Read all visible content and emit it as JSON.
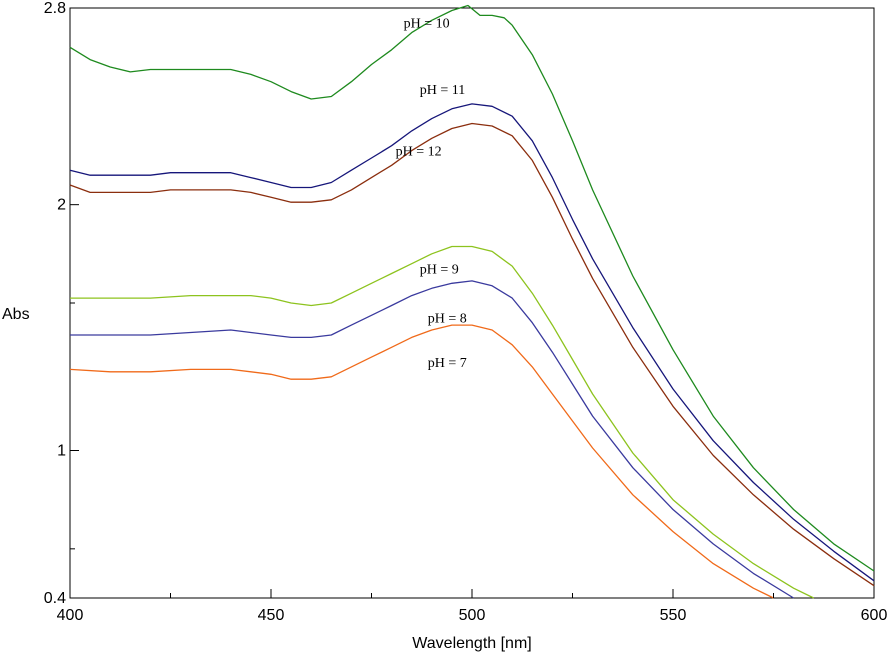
{
  "chart_data": {
    "type": "line",
    "xlabel": "Wavelength [nm]",
    "ylabel": "Abs",
    "xlim": [
      400,
      600
    ],
    "ylim": [
      0.4,
      2.8
    ],
    "xticks": [
      {
        "value": 400,
        "label": "400"
      },
      {
        "value": 450,
        "label": "450"
      },
      {
        "value": 500,
        "label": "500"
      },
      {
        "value": 550,
        "label": "550"
      },
      {
        "value": 600,
        "label": "600"
      }
    ],
    "xminor": [
      425,
      475,
      525,
      575
    ],
    "yticks": [
      {
        "value": 0.4,
        "label": "0.4"
      },
      {
        "value": 1,
        "label": "1"
      },
      {
        "value": 2,
        "label": "2"
      },
      {
        "value": 2.8,
        "label": "2.8"
      }
    ],
    "yminor": [
      0.6,
      1.6
    ],
    "grid": false,
    "legend": "none",
    "series": [
      {
        "name": "pH = 10",
        "color": "#1e8a1e",
        "label_at": [
          483,
          2.72
        ],
        "x": [
          400,
          405,
          410,
          415,
          420,
          425,
          430,
          435,
          440,
          445,
          450,
          455,
          460,
          465,
          470,
          475,
          480,
          485,
          490,
          495,
          499,
          502,
          505,
          508,
          510,
          515,
          520,
          525,
          530,
          540,
          550,
          560,
          570,
          580,
          590,
          600
        ],
        "y": [
          2.64,
          2.59,
          2.56,
          2.54,
          2.55,
          2.55,
          2.55,
          2.55,
          2.55,
          2.53,
          2.5,
          2.46,
          2.43,
          2.44,
          2.5,
          2.57,
          2.63,
          2.7,
          2.75,
          2.79,
          2.81,
          2.77,
          2.77,
          2.76,
          2.73,
          2.61,
          2.45,
          2.26,
          2.06,
          1.71,
          1.41,
          1.14,
          0.93,
          0.76,
          0.62,
          0.51
        ]
      },
      {
        "name": "pH = 11",
        "color": "#16167a",
        "label_at": [
          487,
          2.45
        ],
        "x": [
          400,
          405,
          410,
          415,
          420,
          425,
          430,
          435,
          440,
          445,
          450,
          455,
          460,
          465,
          470,
          475,
          480,
          485,
          490,
          495,
          500,
          505,
          510,
          515,
          520,
          525,
          530,
          540,
          550,
          560,
          570,
          580,
          590,
          600
        ],
        "y": [
          2.14,
          2.12,
          2.12,
          2.12,
          2.12,
          2.13,
          2.13,
          2.13,
          2.13,
          2.11,
          2.09,
          2.07,
          2.07,
          2.09,
          2.14,
          2.19,
          2.24,
          2.3,
          2.35,
          2.39,
          2.41,
          2.4,
          2.36,
          2.26,
          2.11,
          1.94,
          1.78,
          1.5,
          1.25,
          1.04,
          0.87,
          0.72,
          0.59,
          0.47
        ]
      },
      {
        "name": "pH = 12",
        "color": "#8b2e0e",
        "label_at": [
          481,
          2.2
        ],
        "x": [
          400,
          405,
          410,
          415,
          420,
          425,
          430,
          435,
          440,
          445,
          450,
          455,
          460,
          465,
          470,
          475,
          480,
          485,
          490,
          495,
          500,
          505,
          510,
          515,
          520,
          525,
          530,
          540,
          550,
          560,
          570,
          580,
          590,
          600
        ],
        "y": [
          2.08,
          2.05,
          2.05,
          2.05,
          2.05,
          2.06,
          2.06,
          2.06,
          2.06,
          2.05,
          2.03,
          2.01,
          2.01,
          2.02,
          2.06,
          2.11,
          2.16,
          2.22,
          2.27,
          2.31,
          2.33,
          2.32,
          2.28,
          2.18,
          2.03,
          1.86,
          1.7,
          1.42,
          1.18,
          0.98,
          0.82,
          0.68,
          0.56,
          0.45
        ]
      },
      {
        "name": "pH = 9",
        "color": "#8dc31e",
        "label_at": [
          487,
          1.72
        ],
        "x": [
          400,
          410,
          420,
          430,
          440,
          445,
          450,
          455,
          460,
          465,
          470,
          475,
          480,
          485,
          490,
          495,
          500,
          505,
          510,
          515,
          520,
          525,
          530,
          540,
          550,
          560,
          570,
          580,
          585
        ],
        "y": [
          1.62,
          1.62,
          1.62,
          1.63,
          1.63,
          1.63,
          1.62,
          1.6,
          1.59,
          1.6,
          1.64,
          1.68,
          1.72,
          1.76,
          1.8,
          1.83,
          1.83,
          1.81,
          1.75,
          1.64,
          1.51,
          1.37,
          1.23,
          0.99,
          0.8,
          0.66,
          0.54,
          0.44,
          0.4
        ]
      },
      {
        "name": "pH = 8",
        "color": "#3a3a9e",
        "label_at": [
          489,
          1.52
        ],
        "x": [
          400,
          410,
          420,
          430,
          440,
          445,
          450,
          455,
          460,
          465,
          470,
          475,
          480,
          485,
          490,
          495,
          500,
          505,
          510,
          515,
          520,
          525,
          530,
          540,
          550,
          560,
          570,
          580
        ],
        "y": [
          1.47,
          1.47,
          1.47,
          1.48,
          1.49,
          1.48,
          1.47,
          1.46,
          1.46,
          1.47,
          1.51,
          1.55,
          1.59,
          1.63,
          1.66,
          1.68,
          1.69,
          1.67,
          1.62,
          1.52,
          1.4,
          1.27,
          1.14,
          0.93,
          0.76,
          0.62,
          0.5,
          0.4
        ]
      },
      {
        "name": "pH = 7",
        "color": "#f06a1a",
        "label_at": [
          489,
          1.34
        ],
        "x": [
          400,
          410,
          420,
          430,
          440,
          445,
          450,
          455,
          460,
          465,
          470,
          475,
          480,
          485,
          490,
          495,
          500,
          505,
          510,
          515,
          520,
          525,
          530,
          540,
          550,
          560,
          570,
          575
        ],
        "y": [
          1.33,
          1.32,
          1.32,
          1.33,
          1.33,
          1.32,
          1.31,
          1.29,
          1.29,
          1.3,
          1.34,
          1.38,
          1.42,
          1.46,
          1.49,
          1.51,
          1.51,
          1.49,
          1.43,
          1.34,
          1.23,
          1.12,
          1.01,
          0.82,
          0.67,
          0.54,
          0.44,
          0.4
        ]
      }
    ]
  }
}
